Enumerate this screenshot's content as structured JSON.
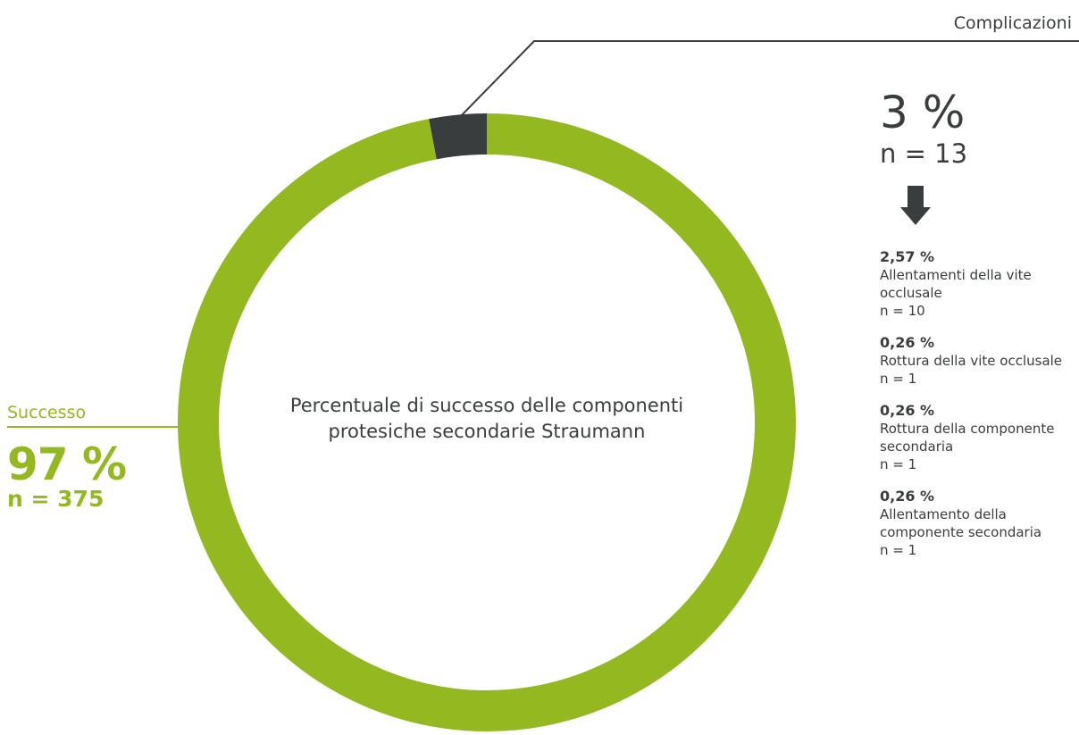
{
  "chart_data": {
    "type": "pie",
    "title": "Percentuale di successo delle componenti protesiche secondarie Straumann",
    "series": [
      {
        "name": "Successo",
        "percent_label": "97 %",
        "n_label": "n = 375",
        "value": 97,
        "color": "#94b81f"
      },
      {
        "name": "Complicazioni",
        "percent_label": "3 %",
        "n_label": "n = 13",
        "value": 3,
        "color": "#3a3d3e"
      }
    ],
    "complication_breakdown": [
      {
        "percent": "2,57 %",
        "label": "Allentamenti della vite occlusale",
        "n": "n = 10"
      },
      {
        "percent": "0,26 %",
        "label": "Rottura della vite occlusale",
        "n": "n = 1"
      },
      {
        "percent": "0,26 %",
        "label": "Rottura della componente secondaria",
        "n": "n = 1"
      },
      {
        "percent": "0,26 %",
        "label": "Allentamento della componente secondaria",
        "n": "n = 1"
      }
    ]
  }
}
